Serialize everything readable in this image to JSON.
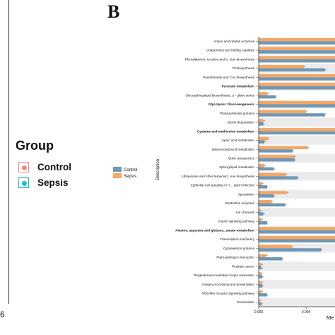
{
  "panel_label": "B",
  "left_panel": {
    "legend_title": "Group",
    "legend_items": [
      {
        "label": "Control",
        "color": "#f4877d"
      },
      {
        "label": "Sepsis",
        "color": "#1fbfc3"
      }
    ],
    "tick_fragment": "6"
  },
  "chart_data": {
    "type": "bar",
    "orientation": "horizontal",
    "ylabel": "Description",
    "xlabel": "Me",
    "xlim": [
      0,
      0.0098
    ],
    "xticks": [
      {
        "value": 0.0,
        "label": "0.000"
      },
      {
        "value": 0.005,
        "label": "0.005"
      }
    ],
    "legend": {
      "position": "left",
      "entries": [
        "Control",
        "Sepsis"
      ]
    },
    "colors": {
      "Control": "#6e97b5",
      "Sepsis": "#f4a764"
    },
    "categories": [
      "Amino acid related enzymes",
      "Chaperones and folding catalysts",
      "Phenylalanine, tyrosine and tr...han biosynthesis",
      "Photosynthesis",
      "Pantothenate and CoA biosynthesis",
      "Pyruvate metabolism",
      "Glycosphingolipid biosynthesis...s - globo series",
      "Glycolysis / Gluconeogenesis",
      "Photosynthesis proteins",
      "Dioxin degradation",
      "Cysteine and methionine metabolism",
      "Lipoic acid metabolism",
      "Selenocompound metabolism",
      "Other transporters",
      "Sphingolipid metabolism",
      "Ubiquinone and other terpenoid...one biosynthesis",
      "Epithelial cell signaling in H... pylori infection",
      "Sporulation",
      "Restriction enzymes",
      "Ion channels",
      "Insulin signaling pathway",
      "Alanine, aspartate and glutama...amate metabolism",
      "Transcription machinery",
      "Cytoskeleton proteins",
      "Plant-pathogen interaction",
      "Prostate cancer",
      "Progesterone-mediated oocyte maturation",
      "Antigen processing and presentation",
      "NOD-like receptor signaling pathway",
      "Germination"
    ],
    "series": [
      {
        "name": "Sepsis",
        "values": [
          0.0098,
          0.0098,
          0.0098,
          0.0048,
          0.0082,
          0.0098,
          0.0009,
          0.0098,
          0.005,
          0.0005,
          0.0098,
          0.001,
          0.0052,
          0.0038,
          0.0006,
          0.0029,
          0.0004,
          0.003,
          0.0014,
          0.0002,
          0.0003,
          0.0098,
          0.0098,
          0.0035,
          0.0008,
          0.0003,
          0.0003,
          0.0003,
          0.0003,
          0.0001
        ]
      },
      {
        "name": "Control",
        "values": [
          0.0098,
          0.0098,
          0.0095,
          0.007,
          0.0092,
          0.0098,
          0.0018,
          0.0098,
          0.007,
          0.0005,
          0.0098,
          0.0006,
          0.0036,
          0.0038,
          0.0016,
          0.0041,
          0.0009,
          0.0016,
          0.0028,
          0.0005,
          0.0009,
          0.0098,
          0.0098,
          0.0066,
          0.0025,
          0.0003,
          0.0004,
          0.0004,
          0.0009,
          0.0003
        ]
      }
    ]
  }
}
